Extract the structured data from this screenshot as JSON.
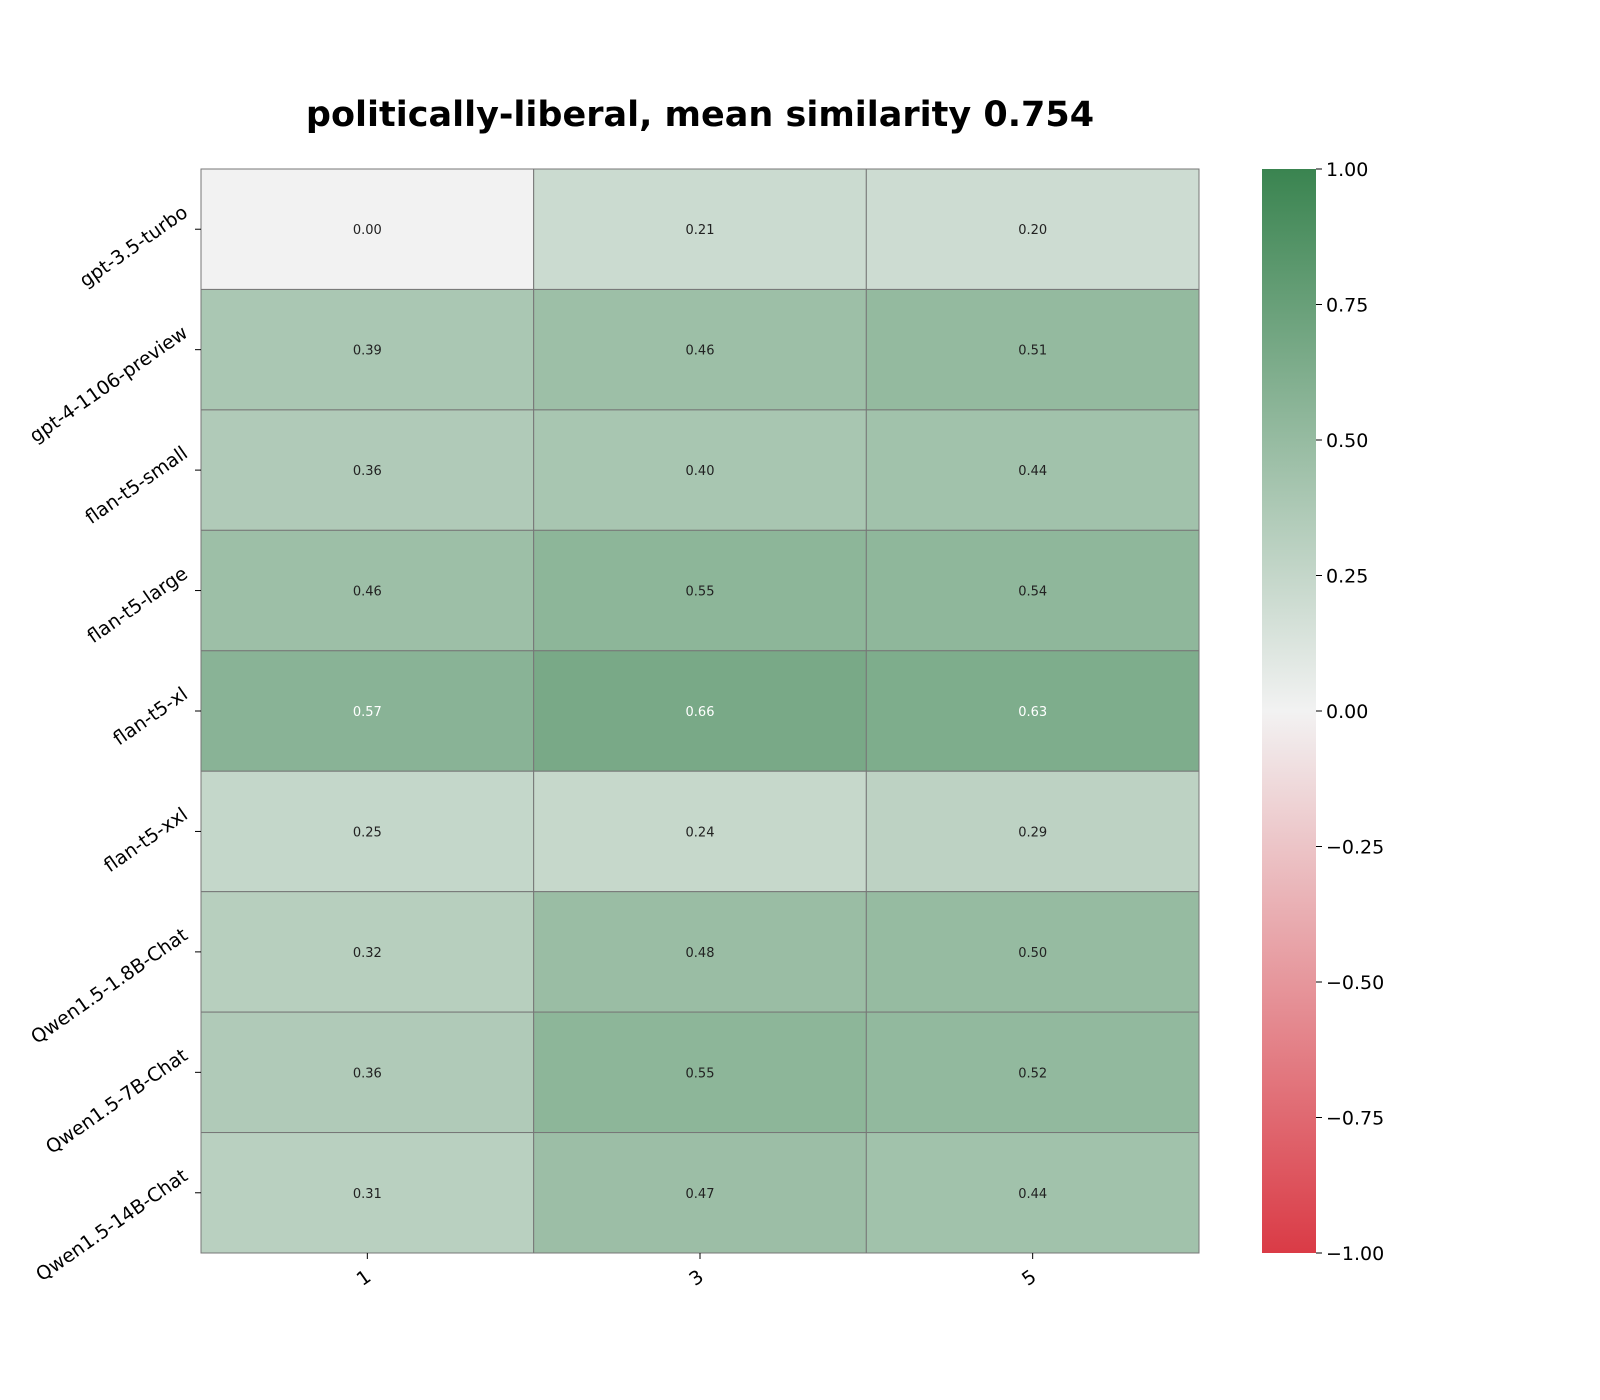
{
  "chart_data": {
    "type": "heatmap",
    "title": "politically-liberal, mean similarity 0.754",
    "rows": [
      "gpt-3.5-turbo",
      "gpt-4-1106-preview",
      "flan-t5-small",
      "flan-t5-large",
      "flan-t5-xl",
      "flan-t5-xxl",
      "Qwen1.5-1.8B-Chat",
      "Qwen1.5-7B-Chat",
      "Qwen1.5-14B-Chat"
    ],
    "columns": [
      "1",
      "3",
      "5"
    ],
    "values": [
      [
        0.0,
        0.21,
        0.2
      ],
      [
        0.39,
        0.46,
        0.51
      ],
      [
        0.36,
        0.4,
        0.44
      ],
      [
        0.46,
        0.55,
        0.54
      ],
      [
        0.57,
        0.66,
        0.63
      ],
      [
        0.25,
        0.24,
        0.29
      ],
      [
        0.32,
        0.48,
        0.5
      ],
      [
        0.36,
        0.55,
        0.52
      ],
      [
        0.31,
        0.47,
        0.44
      ]
    ],
    "value_labels": [
      [
        "0.00",
        "0.21",
        "0.20"
      ],
      [
        "0.39",
        "0.46",
        "0.51"
      ],
      [
        "0.36",
        "0.40",
        "0.44"
      ],
      [
        "0.46",
        "0.55",
        "0.54"
      ],
      [
        "0.57",
        "0.66",
        "0.63"
      ],
      [
        "0.25",
        "0.24",
        "0.29"
      ],
      [
        "0.32",
        "0.48",
        "0.50"
      ],
      [
        "0.36",
        "0.55",
        "0.52"
      ],
      [
        "0.31",
        "0.47",
        "0.44"
      ]
    ],
    "colorbar": {
      "range": [
        -1.0,
        1.0
      ],
      "ticks": [
        1.0,
        0.75,
        0.5,
        0.25,
        0.0,
        -0.25,
        -0.5,
        -0.75,
        -1.0
      ],
      "tick_labels": [
        "1.00",
        "0.75",
        "0.50",
        "0.25",
        "0.00",
        "−0.25",
        "−0.50",
        "−0.75",
        "−1.00"
      ],
      "colors": {
        "negative": "#da3b46",
        "center": "#f2f2f2",
        "positive": "#3a8450"
      }
    }
  }
}
